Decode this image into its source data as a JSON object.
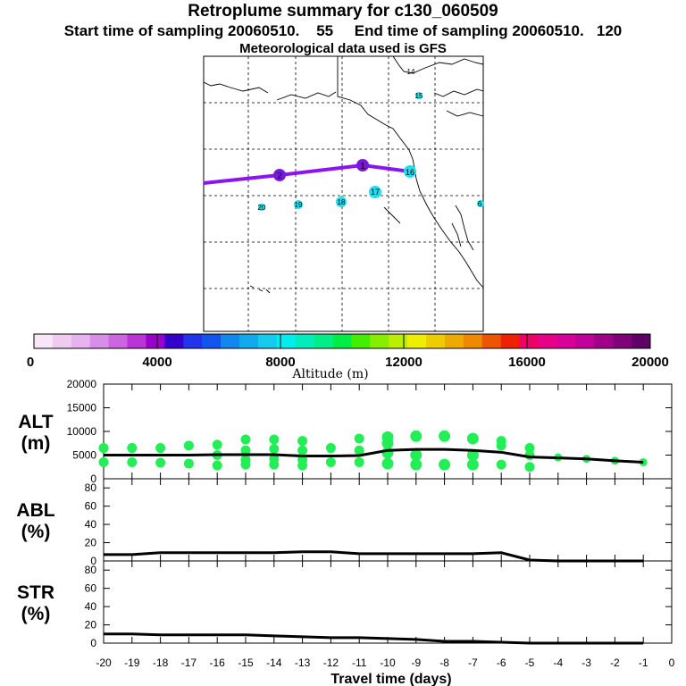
{
  "header": {
    "title": "Retroplume summary for c130_060509",
    "sampling": "Start time of sampling 20060510.    55     End time of sampling 20060510.   120",
    "met": "Meteorological data used is GFS"
  },
  "colorbar": {
    "label": "Altitude  (m)",
    "ticks": [
      "0",
      "4000",
      "8000",
      "12000",
      "16000",
      "20000"
    ],
    "colors": [
      "#f7e6f7",
      "#efccef",
      "#e7b3ef",
      "#d88de8",
      "#cc66e0",
      "#b933d8",
      "#9900cc",
      "#3300cc",
      "#2233ee",
      "#1155ee",
      "#1188ee",
      "#11aaee",
      "#11ccee",
      "#00eeee",
      "#00eebb",
      "#00ee88",
      "#00ee44",
      "#44ee00",
      "#88ee00",
      "#bbee00",
      "#eeee00",
      "#eecc00",
      "#eeaa00",
      "#ee8800",
      "#ee5500",
      "#ee2200",
      "#ee0066",
      "#e80088",
      "#d80099",
      "#c00099",
      "#a00088",
      "#800077",
      "#600066"
    ]
  },
  "map": {
    "path_labels": [
      "2",
      "1",
      "16"
    ],
    "day_labels": [
      {
        "text": "14"
      },
      {
        "text": "15"
      },
      {
        "text": "17"
      },
      {
        "text": "18"
      },
      {
        "text": "19"
      },
      {
        "text": "20"
      },
      {
        "text": "6"
      }
    ]
  },
  "chart_data": [
    {
      "type": "scatter",
      "title": "ALT",
      "ylabel": "ALT\n(m)",
      "ylim": [
        0,
        20000
      ],
      "yticks": [
        "0",
        "5000",
        "10000",
        "15000",
        "20000"
      ],
      "x": [
        -20,
        -19,
        -18,
        -17,
        -16,
        -15,
        -14,
        -13,
        -12,
        -11,
        -10,
        -9,
        -8,
        -7,
        -6,
        -5,
        -4,
        -3,
        -2,
        -1
      ],
      "median_line": [
        5000,
        5000,
        5000,
        5000,
        5100,
        5100,
        5100,
        4800,
        4800,
        4900,
        6000,
        6200,
        6200,
        6000,
        5600,
        4600,
        4400,
        4200,
        3800,
        3500
      ],
      "clusters": [
        {
          "x": -20,
          "alts": [
            6500,
            3500
          ]
        },
        {
          "x": -19,
          "alts": [
            6500,
            3500
          ]
        },
        {
          "x": -18,
          "alts": [
            6500,
            3400
          ]
        },
        {
          "x": -17,
          "alts": [
            7000,
            3200
          ]
        },
        {
          "x": -16,
          "alts": [
            7200,
            5000,
            2800
          ]
        },
        {
          "x": -15,
          "alts": [
            8300,
            6000,
            4000,
            3000
          ]
        },
        {
          "x": -14,
          "alts": [
            8300,
            6300,
            4200,
            3000
          ]
        },
        {
          "x": -13,
          "alts": [
            8000,
            6000,
            4000,
            2800
          ]
        },
        {
          "x": -12,
          "alts": [
            6500,
            3500
          ]
        },
        {
          "x": -11,
          "alts": [
            8500,
            6000,
            3500
          ]
        },
        {
          "x": -10,
          "alts": [
            8800,
            7500,
            5500,
            3200
          ]
        },
        {
          "x": -9,
          "alts": [
            9000,
            5000,
            3000
          ]
        },
        {
          "x": -8,
          "alts": [
            9000,
            3000
          ]
        },
        {
          "x": -7,
          "alts": [
            8500,
            5000,
            3000
          ]
        },
        {
          "x": -6,
          "alts": [
            8000,
            7000,
            3000
          ]
        },
        {
          "x": -5,
          "alts": [
            6500,
            5000,
            2500
          ]
        },
        {
          "x": -4,
          "alts": [
            4500
          ]
        },
        {
          "x": -3,
          "alts": [
            4200
          ]
        },
        {
          "x": -2,
          "alts": [
            3800
          ]
        },
        {
          "x": -1,
          "alts": [
            3500
          ]
        }
      ]
    },
    {
      "type": "line",
      "title": "ABL",
      "ylabel": "ABL\n(%)",
      "ylim": [
        0,
        90
      ],
      "yticks": [
        "0",
        "20",
        "40",
        "60",
        "80"
      ],
      "x": [
        -20,
        -19,
        -18,
        -17,
        -16,
        -15,
        -14,
        -13,
        -12,
        -11,
        -10,
        -9,
        -8,
        -7,
        -6,
        -5,
        -4,
        -3,
        -2,
        -1
      ],
      "values": [
        7,
        7,
        9,
        9,
        9,
        9,
        9,
        10,
        10,
        8,
        8,
        8,
        8,
        8,
        9,
        1,
        0,
        0,
        0,
        0
      ]
    },
    {
      "type": "line",
      "title": "STR",
      "ylabel": "STR\n(%)",
      "ylim": [
        0,
        90
      ],
      "yticks": [
        "0",
        "20",
        "40",
        "60",
        "80"
      ],
      "x": [
        -20,
        -19,
        -18,
        -17,
        -16,
        -15,
        -14,
        -13,
        -12,
        -11,
        -10,
        -9,
        -8,
        -7,
        -6,
        -5,
        -4,
        -3,
        -2,
        -1
      ],
      "values": [
        10,
        10,
        9,
        9,
        9,
        9,
        8,
        7,
        6,
        6,
        5,
        4,
        2,
        2,
        1,
        0,
        0,
        0,
        0,
        0
      ],
      "xlabel": "Travel time (days)",
      "xticks": [
        "-20",
        "-19",
        "-18",
        "-17",
        "-16",
        "-15",
        "-14",
        "-13",
        "-12",
        "-11",
        "-10",
        "-9",
        "-8",
        "-7",
        "-6",
        "-5",
        "-4",
        "-3",
        "-2",
        "-1",
        "0"
      ]
    }
  ]
}
